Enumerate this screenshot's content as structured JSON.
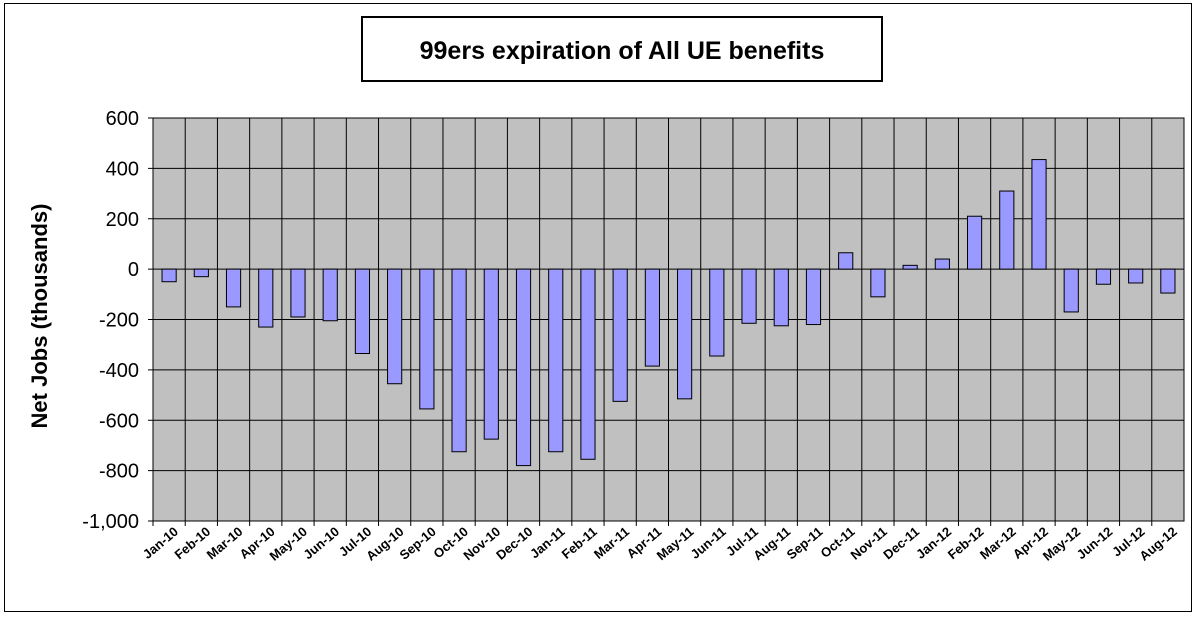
{
  "chart_data": {
    "type": "bar",
    "title": "99ers expiration of All UE benefits",
    "xlabel": "",
    "ylabel": "Net Jobs (thousands)",
    "ylim": [
      -1000,
      600
    ],
    "yticks": [
      600,
      400,
      200,
      0,
      -200,
      -400,
      -600,
      -800,
      -1000
    ],
    "ytick_labels": [
      "600",
      "400",
      "200",
      "0",
      "-200",
      "-400",
      "-600",
      "-800",
      "-1,000"
    ],
    "grid": true,
    "legend": "none",
    "categories": [
      "Jan-10",
      "Feb-10",
      "Mar-10",
      "Apr-10",
      "May-10",
      "Jun-10",
      "Jul-10",
      "Aug-10",
      "Sep-10",
      "Oct-10",
      "Nov-10",
      "Dec-10",
      "Jan-11",
      "Feb-11",
      "Mar-11",
      "Apr-11",
      "May-11",
      "Jun-11",
      "Jul-11",
      "Aug-11",
      "Sep-11",
      "Oct-11",
      "Nov-11",
      "Dec-11",
      "Jan-12",
      "Feb-12",
      "Mar-12",
      "Apr-12",
      "May-12",
      "Jun-12",
      "Jul-12",
      "Aug-12"
    ],
    "values": [
      -50,
      -30,
      -150,
      -230,
      -190,
      -205,
      -335,
      -455,
      -555,
      -725,
      -675,
      -780,
      -725,
      -755,
      -525,
      -385,
      -515,
      -345,
      -215,
      -225,
      -220,
      65,
      -110,
      15,
      40,
      210,
      310,
      435,
      -170,
      -60,
      -55,
      -95
    ],
    "colors": {
      "plot_bg": "#c0c0c0",
      "bar_fill": "#9999ff",
      "bar_stroke": "#000000",
      "grid": "#000000"
    }
  }
}
